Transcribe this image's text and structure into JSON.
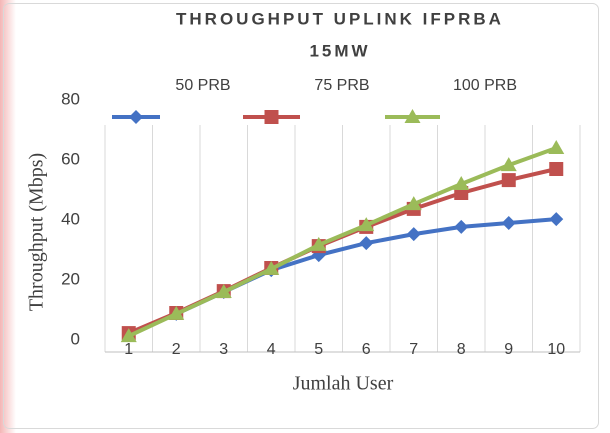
{
  "chart_data": {
    "type": "line",
    "title": [
      "THROUGHPUT UPLINK IFPRBA",
      "15MW"
    ],
    "xlabel": "Jumlah User",
    "ylabel": "Throughput (Mbps)",
    "categories": [
      "1",
      "2",
      "3",
      "4",
      "5",
      "6",
      "7",
      "8",
      "9",
      "10"
    ],
    "series": [
      {
        "name": "50 PRB",
        "color": "#4472c4",
        "marker": "diamond",
        "values": [
          2,
          8.7,
          16,
          23.3,
          28.3,
          32.3,
          35.3,
          37.7,
          39,
          40.3
        ]
      },
      {
        "name": "75 PRB",
        "color": "#c0504d",
        "marker": "square",
        "values": [
          2.3,
          9,
          16.3,
          24,
          31.3,
          37.7,
          43.7,
          49,
          53.3,
          57
        ]
      },
      {
        "name": "100 PRB",
        "color": "#9bbb59",
        "marker": "triangle",
        "values": [
          1.3,
          8.7,
          16,
          23.7,
          31.7,
          38.3,
          45.3,
          52,
          58.3,
          64
        ]
      }
    ],
    "ylim": [
      -4,
      80
    ],
    "yticks": [
      0,
      20,
      40,
      60,
      80
    ],
    "grid": true,
    "legend": "top"
  }
}
